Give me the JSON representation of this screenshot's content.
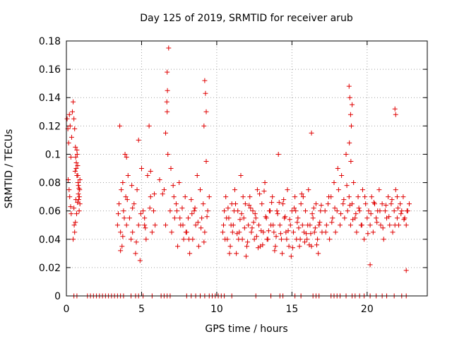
{
  "chart_data": {
    "type": "scatter",
    "title": "Day 125 of 2019, SRMTID for receiver arub",
    "xlabel": "GPS time / hours",
    "ylabel": "SRMTID / TECUs",
    "xlim": [
      0,
      24
    ],
    "ylim": [
      0,
      0.18
    ],
    "x_ticks": [
      0,
      5,
      10,
      15,
      20
    ],
    "x_tick_labels": [
      "0",
      "5",
      "10",
      "15",
      "20"
    ],
    "y_ticks": [
      0,
      0.02,
      0.04,
      0.06,
      0.08,
      0.1,
      0.12,
      0.14,
      0.16,
      0.18
    ],
    "y_tick_labels": [
      "0",
      "0.02",
      "0.04",
      "0.06",
      "0.08",
      "0.1",
      "0.12",
      "0.14",
      "0.16",
      "0.18"
    ],
    "grid": true,
    "marker": "+",
    "color": "#e00000",
    "series": [
      {
        "name": "SRMTID",
        "x": [
          0.05,
          0.1,
          0.15,
          0.2,
          0.25,
          0.3,
          0.35,
          0.12,
          0.18,
          0.22,
          0.28,
          0.32,
          0.4,
          0.45,
          0.5,
          0.55,
          0.6,
          0.62,
          0.65,
          0.7,
          0.72,
          0.75,
          0.78,
          0.8,
          0.82,
          0.85,
          0.88,
          0.9,
          0.55,
          0.6,
          0.68,
          0.74,
          0.8,
          0.86,
          0.5,
          0.58,
          0.66,
          0.7,
          0.76,
          0.84,
          0.9,
          0.45,
          0.52,
          0.63,
          3.4,
          3.5,
          3.55,
          3.6,
          3.65,
          3.7,
          3.75,
          3.8,
          3.85,
          3.9,
          3.95,
          4.0,
          4.1,
          4.2,
          4.3,
          4.4,
          4.5,
          4.6,
          4.7,
          4.8,
          4.9,
          5.0,
          5.1,
          5.2,
          5.3,
          5.4,
          5.5,
          5.6,
          5.7,
          5.8,
          5.9,
          3.45,
          3.75,
          4.05,
          4.35,
          4.65,
          4.95,
          5.25,
          5.55,
          5.85,
          3.6,
          4.0,
          4.4,
          4.8,
          5.2,
          5.6,
          6.2,
          6.4,
          6.5,
          6.6,
          6.7,
          6.8,
          6.9,
          7.0,
          7.1,
          7.2,
          7.3,
          7.4,
          7.5,
          7.6,
          7.7,
          7.8,
          7.9,
          8.0,
          8.1,
          8.2,
          8.3,
          8.4,
          8.5,
          8.6,
          8.7,
          8.8,
          8.9,
          9.0,
          9.1,
          9.2,
          9.3,
          9.4,
          9.5,
          6.6,
          6.75,
          6.95,
          7.15,
          7.35,
          7.55,
          7.75,
          7.95,
          8.15,
          8.35,
          8.55,
          8.75,
          8.95,
          9.15,
          9.35,
          6.7,
          6.72,
          6.68,
          9.2,
          9.25,
          9.3,
          9.15,
          10.4,
          10.5,
          10.6,
          10.7,
          10.8,
          10.9,
          11.0,
          11.1,
          11.2,
          11.3,
          11.4,
          11.5,
          11.6,
          11.7,
          11.8,
          11.9,
          12.0,
          12.1,
          12.2,
          12.3,
          12.4,
          12.5,
          12.6,
          12.7,
          12.8,
          12.9,
          13.0,
          13.1,
          13.2,
          13.3,
          13.4,
          13.5,
          13.6,
          13.7,
          13.8,
          13.9,
          14.0,
          14.1,
          14.2,
          14.3,
          14.4,
          14.5,
          14.6,
          14.7,
          14.8,
          14.9,
          15.0,
          15.1,
          15.2,
          15.3,
          15.4,
          15.5,
          15.6,
          15.7,
          15.8,
          15.9,
          16.0,
          16.1,
          16.2,
          16.3,
          16.4,
          16.5,
          16.6,
          16.7,
          16.8,
          16.9,
          17.0,
          10.45,
          10.65,
          10.85,
          11.05,
          11.25,
          11.45,
          11.65,
          11.85,
          12.05,
          12.25,
          12.45,
          12.65,
          12.85,
          13.05,
          13.25,
          13.45,
          13.65,
          13.85,
          14.05,
          14.25,
          14.45,
          14.65,
          14.85,
          15.05,
          15.25,
          15.45,
          15.65,
          15.85,
          16.05,
          16.25,
          16.45,
          16.65,
          16.85,
          10.55,
          10.75,
          10.95,
          11.15,
          11.35,
          11.55,
          11.75,
          11.95,
          12.15,
          12.35,
          12.55,
          12.75,
          12.95,
          13.15,
          13.35,
          13.55,
          13.75,
          13.95,
          14.15,
          14.35,
          14.55,
          14.75,
          14.95,
          15.15,
          15.35,
          15.55,
          15.75,
          15.95,
          16.15,
          16.35,
          16.55,
          16.75,
          16.95,
          17.2,
          17.3,
          17.4,
          17.5,
          17.6,
          17.7,
          17.8,
          17.9,
          18.0,
          18.1,
          18.2,
          18.3,
          18.4,
          18.5,
          18.6,
          18.7,
          18.8,
          18.9,
          19.0,
          19.1,
          19.2,
          19.3,
          19.4,
          19.5,
          19.6,
          19.7,
          19.8,
          19.9,
          20.0,
          20.1,
          20.2,
          20.3,
          20.4,
          20.5,
          20.6,
          20.7,
          20.8,
          20.9,
          21.0,
          21.1,
          21.2,
          21.3,
          21.4,
          21.5,
          21.6,
          21.7,
          21.8,
          21.9,
          22.0,
          22.1,
          22.2,
          22.3,
          22.4,
          22.5,
          22.6,
          22.7,
          22.8,
          17.25,
          17.45,
          17.65,
          17.85,
          18.05,
          18.25,
          18.45,
          18.65,
          18.85,
          19.05,
          19.25,
          19.45,
          19.65,
          19.85,
          20.05,
          20.25,
          20.45,
          20.65,
          20.85,
          21.05,
          21.25,
          21.45,
          21.65,
          21.85,
          22.05,
          22.25,
          22.45,
          22.65,
          18.8,
          18.85,
          18.9,
          18.95,
          19.0,
          18.82,
          18.92,
          16.3,
          21.85,
          21.9,
          20.2,
          22.0,
          22.6
        ],
        "y": [
          0.125,
          0.118,
          0.108,
          0.128,
          0.12,
          0.098,
          0.112,
          0.082,
          0.075,
          0.07,
          0.063,
          0.058,
          0.13,
          0.137,
          0.125,
          0.118,
          0.105,
          0.098,
          0.09,
          0.085,
          0.1,
          0.092,
          0.08,
          0.072,
          0.068,
          0.06,
          0.075,
          0.065,
          0.045,
          0.052,
          0.058,
          0.066,
          0.078,
          0.07,
          0.062,
          0.088,
          0.094,
          0.103,
          0.085,
          0.076,
          0.082,
          0.04,
          0.05,
          0.068,
          0.05,
          0.065,
          0.12,
          0.045,
          0.075,
          0.035,
          0.08,
          0.06,
          0.055,
          0.1,
          0.07,
          0.05,
          0.085,
          0.055,
          0.04,
          0.045,
          0.065,
          0.03,
          0.075,
          0.05,
          0.025,
          0.09,
          0.06,
          0.055,
          0.04,
          0.085,
          0.12,
          0.07,
          0.045,
          0.06,
          0.05,
          0.058,
          0.042,
          0.068,
          0.078,
          0.038,
          0.058,
          0.048,
          0.062,
          0.072,
          0.032,
          0.098,
          0.062,
          0.11,
          0.05,
          0.088,
          0.082,
          0.072,
          0.075,
          0.05,
          0.13,
          0.175,
          0.06,
          0.045,
          0.078,
          0.055,
          0.065,
          0.035,
          0.08,
          0.05,
          0.062,
          0.04,
          0.07,
          0.045,
          0.055,
          0.03,
          0.068,
          0.04,
          0.06,
          0.05,
          0.085,
          0.035,
          0.075,
          0.055,
          0.065,
          0.045,
          0.095,
          0.06,
          0.07,
          0.115,
          0.1,
          0.09,
          0.07,
          0.06,
          0.055,
          0.05,
          0.045,
          0.04,
          0.058,
          0.062,
          0.052,
          0.048,
          0.038,
          0.056,
          0.158,
          0.145,
          0.137,
          0.152,
          0.143,
          0.13,
          0.12,
          0.045,
          0.06,
          0.07,
          0.04,
          0.055,
          0.035,
          0.065,
          0.05,
          0.075,
          0.03,
          0.06,
          0.045,
          0.085,
          0.04,
          0.055,
          0.065,
          0.035,
          0.05,
          0.07,
          0.045,
          0.06,
          0.04,
          0.055,
          0.075,
          0.05,
          0.035,
          0.065,
          0.045,
          0.08,
          0.055,
          0.04,
          0.06,
          0.05,
          0.07,
          0.045,
          0.035,
          0.06,
          0.1,
          0.05,
          0.04,
          0.065,
          0.055,
          0.045,
          0.075,
          0.035,
          0.05,
          0.06,
          0.045,
          0.07,
          0.04,
          0.055,
          0.035,
          0.065,
          0.05,
          0.045,
          0.06,
          0.04,
          0.075,
          0.05,
          0.035,
          0.055,
          0.045,
          0.065,
          0.04,
          0.05,
          0.06,
          0.045,
          0.05,
          0.055,
          0.03,
          0.045,
          0.065,
          0.04,
          0.058,
          0.048,
          0.038,
          0.062,
          0.052,
          0.042,
          0.072,
          0.036,
          0.056,
          0.046,
          0.066,
          0.032,
          0.058,
          0.044,
          0.068,
          0.04,
          0.054,
          0.034,
          0.06,
          0.048,
          0.072,
          0.038,
          0.05,
          0.044,
          0.062,
          0.036,
          0.052,
          0.04,
          0.062,
          0.05,
          0.06,
          0.044,
          0.054,
          0.07,
          0.028,
          0.064,
          0.048,
          0.058,
          0.034,
          0.046,
          0.074,
          0.04,
          0.06,
          0.05,
          0.042,
          0.066,
          0.03,
          0.056,
          0.046,
          0.028,
          0.062,
          0.052,
          0.04,
          0.07,
          0.044,
          0.036,
          0.058,
          0.048,
          0.03,
          0.064,
          0.06,
          0.05,
          0.065,
          0.04,
          0.07,
          0.055,
          0.08,
          0.045,
          0.06,
          0.075,
          0.05,
          0.085,
          0.065,
          0.055,
          0.1,
          0.06,
          0.07,
          0.05,
          0.065,
          0.08,
          0.055,
          0.045,
          0.07,
          0.06,
          0.05,
          0.075,
          0.04,
          0.065,
          0.055,
          0.06,
          0.05,
          0.07,
          0.045,
          0.065,
          0.055,
          0.06,
          0.075,
          0.05,
          0.065,
          0.04,
          0.06,
          0.055,
          0.07,
          0.05,
          0.065,
          0.045,
          0.06,
          0.075,
          0.055,
          0.05,
          0.065,
          0.06,
          0.07,
          0.055,
          0.05,
          0.06,
          0.065,
          0.045,
          0.07,
          0.052,
          0.062,
          0.09,
          0.058,
          0.068,
          0.078,
          0.064,
          0.054,
          0.058,
          0.062,
          0.05,
          0.07,
          0.044,
          0.058,
          0.066,
          0.052,
          0.06,
          0.048,
          0.064,
          0.056,
          0.068,
          0.05,
          0.062,
          0.058,
          0.054,
          0.06,
          0.148,
          0.14,
          0.128,
          0.12,
          0.135,
          0.108,
          0.095,
          0.115,
          0.132,
          0.128,
          0.022,
          0.07,
          0.018
        ]
      }
    ],
    "zero_points_x": [
      0.5,
      0.7,
      1.4,
      1.6,
      1.8,
      2.0,
      2.2,
      2.4,
      2.6,
      2.8,
      3.0,
      3.2,
      3.4,
      3.6,
      3.8,
      4.3,
      4.6,
      4.8,
      5.1,
      5.7,
      6.3,
      6.5,
      6.7,
      6.9,
      8.0,
      8.3,
      8.6,
      8.9,
      9.2,
      9.5,
      9.7,
      9.9,
      10.1,
      10.3,
      10.5,
      11.0,
      12.6,
      13.6,
      14.2,
      14.4,
      15.2,
      15.6,
      16.4,
      16.6,
      16.8,
      17.6,
      17.8,
      18.0,
      18.2,
      18.6,
      19.0,
      19.2,
      19.5,
      19.8,
      20.2,
      20.6,
      21.0,
      21.3,
      21.8,
      22.3,
      22.6
    ],
    "zero_points_y": 0
  }
}
